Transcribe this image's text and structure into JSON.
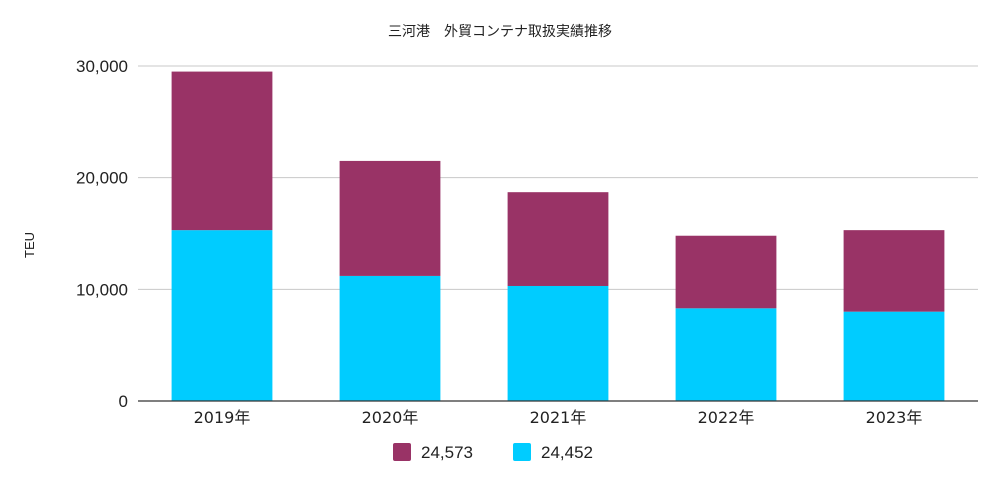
{
  "chart_data": {
    "type": "bar",
    "stacked": true,
    "title": "三河港　外貿コンテナ取扱実績推移",
    "xlabel": "",
    "ylabel": "TEU",
    "categories": [
      "2019年",
      "2020年",
      "2021年",
      "2022年",
      "2023年"
    ],
    "ylim": [
      0,
      30000
    ],
    "yticks": [
      0,
      10000,
      20000,
      30000
    ],
    "ytick_labels": [
      "0",
      "10,000",
      "20,000",
      "30,000"
    ],
    "grid": true,
    "legend_position": "bottom-center",
    "series": [
      {
        "name": "24,452",
        "color": "#00CCFF",
        "values": [
          15300,
          11200,
          10300,
          8300,
          8000
        ]
      },
      {
        "name": "24,573",
        "color": "#993366",
        "values": [
          14200,
          10300,
          8400,
          6500,
          7300
        ]
      }
    ],
    "legend_order": [
      1,
      0
    ]
  }
}
